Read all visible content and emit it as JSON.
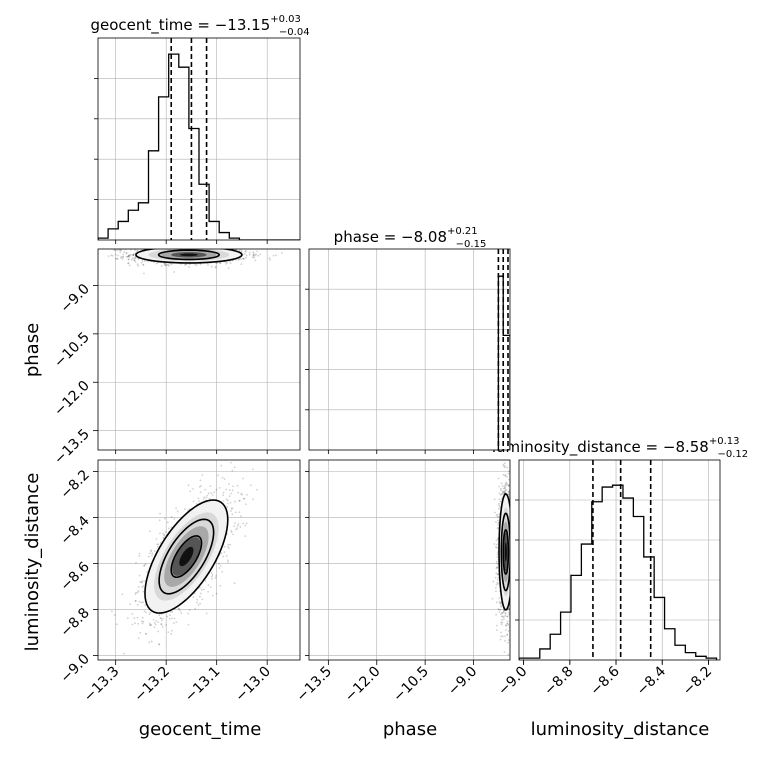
{
  "chart_data": {
    "type": "corner",
    "parameters": [
      "geocent_time",
      "phase",
      "luminosity_distance"
    ],
    "titles": [
      {
        "param": "geocent_time",
        "prefix": "geocent_time = ",
        "value": "−13.15",
        "upper": "+0.03",
        "lower": "−0.04"
      },
      {
        "param": "phase",
        "prefix": "phase = ",
        "value": "−8.08",
        "upper": "+0.21",
        "lower": "−0.15"
      },
      {
        "param": "luminosity_distance",
        "prefix": "luminosity_distance = ",
        "value": "−8.58",
        "upper": "+0.13",
        "lower": "−0.12"
      }
    ],
    "ranges": {
      "geocent_time": [
        -13.335,
        -12.935
      ],
      "phase": [
        -14.1,
        -7.87
      ],
      "luminosity_distance": [
        -9.02,
        -8.15
      ]
    },
    "ticks": {
      "geocent_time": [
        -13.3,
        -13.2,
        -13.1,
        -13.0
      ],
      "phase": [
        -13.5,
        -12.0,
        -10.5,
        -9.0
      ],
      "luminosity_distance": [
        -9.0,
        -8.8,
        -8.6,
        -8.4,
        -8.2
      ]
    },
    "tick_labels": {
      "geocent_time": [
        "−13.3",
        "−13.2",
        "−13.1",
        "−13.0"
      ],
      "phase": [
        "−13.5",
        "−12.0",
        "−10.5",
        "−9.0"
      ],
      "luminosity_distance": [
        "−9.0",
        "−8.8",
        "−8.6",
        "−8.4",
        "−8.2"
      ]
    },
    "quantiles": {
      "geocent_time": [
        -13.19,
        -13.15,
        -13.12
      ],
      "phase": [
        -8.23,
        -8.08,
        -7.87
      ],
      "luminosity_distance": [
        -8.7,
        -8.58,
        -8.45
      ]
    },
    "histograms": {
      "geocent_time": {
        "edges": [
          -13.335,
          -13.315,
          -13.295,
          -13.275,
          -13.255,
          -13.235,
          -13.215,
          -13.195,
          -13.175,
          -13.155,
          -13.135,
          -13.115,
          -13.095,
          -13.075,
          -13.055,
          -13.035,
          -13.015,
          -12.995,
          -12.975,
          -12.955,
          -12.935
        ],
        "counts": [
          0.01,
          0.06,
          0.1,
          0.16,
          0.2,
          0.48,
          0.77,
          1.0,
          0.93,
          0.6,
          0.3,
          0.1,
          0.04,
          0.01,
          0,
          0,
          0,
          0,
          0,
          0
        ]
      },
      "phase": {
        "edges": [
          -8.23,
          -8.08,
          -7.87
        ],
        "counts": [
          0.94,
          0.62
        ]
      },
      "luminosity_distance": {
        "edges": [
          -9.02,
          -8.975,
          -8.93,
          -8.885,
          -8.84,
          -8.795,
          -8.75,
          -8.705,
          -8.66,
          -8.615,
          -8.57,
          -8.525,
          -8.48,
          -8.435,
          -8.39,
          -8.345,
          -8.3,
          -8.255,
          -8.21,
          -8.165
        ],
        "counts": [
          0.01,
          0.01,
          0.06,
          0.14,
          0.26,
          0.46,
          0.63,
          0.86,
          0.94,
          0.95,
          0.88,
          0.78,
          0.56,
          0.34,
          0.17,
          0.08,
          0.04,
          0.02,
          0.01
        ]
      }
    },
    "posterior_2d": [
      {
        "x": "geocent_time",
        "y": "phase",
        "center": [
          -13.155,
          -8.05
        ],
        "sd": [
          0.05,
          0.12
        ],
        "rho": 0.0,
        "contour_sigma": [
          1.2,
          2.1
        ]
      },
      {
        "x": "geocent_time",
        "y": "luminosity_distance",
        "center": [
          -13.16,
          -8.57
        ],
        "sd": [
          0.04,
          0.12
        ],
        "rho": 0.65,
        "contour_sigma": [
          0.75,
          1.35,
          2.05
        ]
      },
      {
        "x": "phase",
        "y": "luminosity_distance",
        "center": [
          -8.0,
          -8.55
        ],
        "sd": [
          0.1,
          0.12
        ],
        "rho": 0.0,
        "contour_sigma": [
          0.8,
          1.4,
          2.1
        ]
      }
    ],
    "grid": true
  }
}
